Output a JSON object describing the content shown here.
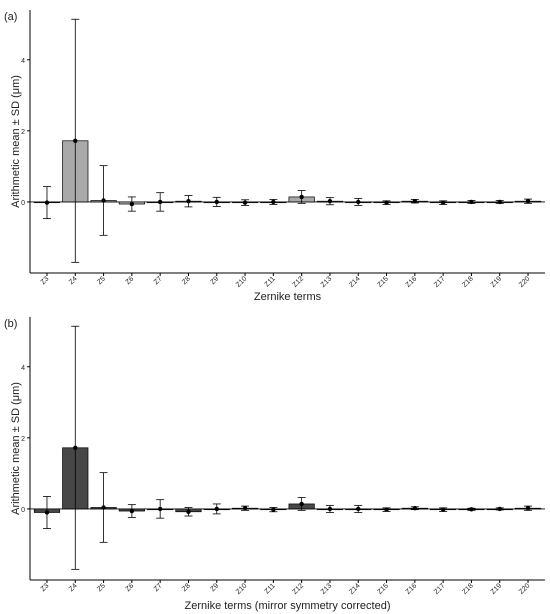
{
  "chart_data": [
    {
      "type": "bar",
      "panel_label": "(a)",
      "xlabel": "Zernike terms",
      "ylabel": "Arithmetic mean ± SD (μm)",
      "categories": [
        "Z3",
        "Z4",
        "Z5",
        "Z6",
        "Z7",
        "Z8",
        "Z9",
        "Z10",
        "Z11",
        "Z12",
        "Z13",
        "Z14",
        "Z15",
        "Z16",
        "Z17",
        "Z18",
        "Z19",
        "Z20"
      ],
      "values": [
        -0.02,
        1.72,
        0.04,
        -0.06,
        0.0,
        0.02,
        0.0,
        -0.02,
        0.0,
        0.14,
        0.02,
        0.0,
        -0.02,
        0.02,
        -0.02,
        0.0,
        0.0,
        0.02
      ],
      "sd": [
        0.45,
        3.42,
        0.98,
        0.2,
        0.26,
        0.16,
        0.13,
        0.08,
        0.07,
        0.18,
        0.1,
        0.1,
        0.05,
        0.05,
        0.05,
        0.04,
        0.04,
        0.06
      ],
      "ylim": [
        -2.0,
        5.4
      ],
      "yticks": [
        0,
        2,
        4
      ],
      "bar_color": "#a9a9a9",
      "grid": false
    },
    {
      "type": "bar",
      "panel_label": "(b)",
      "xlabel": "Zernike terms (mirror symmetry corrected)",
      "ylabel": "Arithmetic mean ± SD (μm)",
      "categories": [
        "Z3",
        "Z4",
        "Z5",
        "Z6",
        "Z7",
        "Z8",
        "Z9",
        "Z10",
        "Z11",
        "Z12",
        "Z13",
        "Z14",
        "Z15",
        "Z16",
        "Z17",
        "Z18",
        "Z19",
        "Z20"
      ],
      "values": [
        -0.1,
        1.72,
        0.04,
        -0.06,
        0.0,
        -0.08,
        0.0,
        0.02,
        -0.02,
        0.14,
        0.0,
        0.0,
        -0.02,
        0.02,
        -0.02,
        -0.01,
        0.0,
        0.02
      ],
      "sd": [
        0.45,
        3.42,
        0.98,
        0.18,
        0.26,
        0.12,
        0.14,
        0.06,
        0.06,
        0.18,
        0.1,
        0.1,
        0.05,
        0.04,
        0.05,
        0.03,
        0.03,
        0.06
      ],
      "ylim": [
        -2.0,
        5.4
      ],
      "yticks": [
        0,
        2,
        4
      ],
      "bar_color": "#474747",
      "grid": false
    }
  ]
}
